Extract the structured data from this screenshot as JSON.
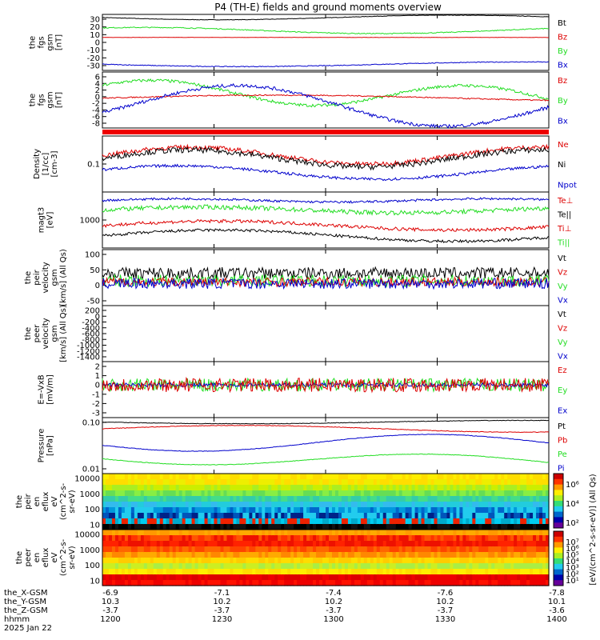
{
  "title": "P4 (TH-E) fields and ground moments overview",
  "colors": {
    "black": "#000000",
    "red": "#dd0000",
    "green": "#22dd22",
    "blue": "#0000cc"
  },
  "panels": [
    {
      "id": "fgs",
      "ylabel": [
        "the",
        "fgs",
        "gsm",
        "[nT]"
      ],
      "yticks": [
        "30",
        "20",
        "10",
        "0",
        "-10",
        "-20",
        "-30"
      ],
      "legend": [
        {
          "t": "Bt",
          "c": "black"
        },
        {
          "t": "Bz",
          "c": "red"
        },
        {
          "t": "By",
          "c": "green"
        },
        {
          "t": "Bx",
          "c": "blue"
        }
      ]
    },
    {
      "id": "fgs_dsl",
      "ylabel": [
        "the",
        "fgs",
        "gsm",
        "[nT]"
      ],
      "yticks": [
        "6",
        "4",
        "2",
        "0",
        "-2",
        "-4",
        "-6",
        "-8"
      ],
      "legend": [
        {
          "t": "Bz",
          "c": "red"
        },
        {
          "t": "By",
          "c": "green"
        },
        {
          "t": "Bx",
          "c": "blue"
        }
      ]
    },
    {
      "id": "density",
      "ylabel": [
        "Density",
        "[1/cc]",
        "[cm-3]"
      ],
      "yticks": [
        "0.1"
      ],
      "legend": [
        {
          "t": "Ne",
          "c": "red"
        },
        {
          "t": "Ni",
          "c": "black"
        },
        {
          "t": "Npot",
          "c": "blue"
        }
      ]
    },
    {
      "id": "temp",
      "ylabel": [
        "magt3",
        "[eV]"
      ],
      "yticks": [
        "1000"
      ],
      "legend": [
        {
          "t": "Te⊥",
          "c": "red"
        },
        {
          "t": "Te||",
          "c": "black"
        },
        {
          "t": "Ti⊥",
          "c": "red"
        },
        {
          "t": "Ti||",
          "c": "green"
        }
      ]
    },
    {
      "id": "vel1",
      "ylabel": [
        "the",
        "peir",
        "velocity",
        "gsm",
        "[km/s] (All Qs)"
      ],
      "yticks": [
        "100",
        "50",
        "0",
        "-50"
      ],
      "legend": [
        {
          "t": "Vt",
          "c": "black"
        },
        {
          "t": "Vz",
          "c": "red"
        },
        {
          "t": "Vy",
          "c": "green"
        },
        {
          "t": "Vx",
          "c": "blue"
        }
      ]
    },
    {
      "id": "vel2",
      "ylabel": [
        "the",
        "peer",
        "velocity",
        "gsm",
        "[km/s] (All Qs)"
      ],
      "yticks": [
        "200",
        "0",
        "-200",
        "-400",
        "-600",
        "-800",
        "-1000",
        "-1200",
        "-1400"
      ],
      "legend": [
        {
          "t": "Vt",
          "c": "black"
        },
        {
          "t": "Vz",
          "c": "red"
        },
        {
          "t": "Vy",
          "c": "green"
        },
        {
          "t": "Vx",
          "c": "blue"
        }
      ]
    },
    {
      "id": "efield",
      "ylabel": [
        "E=-VxB",
        "[mV/m]"
      ],
      "yticks": [
        "2",
        "1",
        "0",
        "-1",
        "-2",
        "-3"
      ],
      "legend": [
        {
          "t": "Ez",
          "c": "red"
        },
        {
          "t": "Ey",
          "c": "green"
        },
        {
          "t": "Ex",
          "c": "blue"
        }
      ]
    },
    {
      "id": "pressure",
      "ylabel": [
        "Pressure",
        "[nPa]"
      ],
      "yticks": [
        "0.10",
        "0.01"
      ],
      "legend": [
        {
          "t": "Pt",
          "c": "black"
        },
        {
          "t": "Pb",
          "c": "red"
        },
        {
          "t": "Pe",
          "c": "green"
        },
        {
          "t": "Pi",
          "c": "blue"
        }
      ]
    },
    {
      "id": "ion_spec",
      "ylabel": [
        "the",
        "peir",
        "en",
        "eflux",
        "eV",
        "(cm^2-s-",
        "sr-eV)"
      ],
      "yticks": [
        "10000",
        "1000",
        "100",
        "10"
      ]
    },
    {
      "id": "ele_spec",
      "ylabel": [
        "the",
        "peer",
        "en",
        "eflux",
        "eV",
        "(cm^2-s-",
        "sr-eV)"
      ],
      "yticks": [
        "10000",
        "1000",
        "100",
        "10"
      ]
    }
  ],
  "colorbars": {
    "ion_labels": [
      "10⁶",
      "10⁴",
      "10²"
    ],
    "ele_labels": [
      "10⁷",
      "10⁶",
      "10⁵",
      "10⁴",
      "10³",
      "10²",
      "10¹"
    ],
    "unit": "[eV/(cm^2-s-sr-eV)] (All Qs)"
  },
  "footer": {
    "row_labels": [
      "the_X-GSM",
      "the_Y-GSM",
      "the_Z-GSM",
      "hhmm",
      "2025 Jan 22"
    ],
    "columns": [
      {
        "x": "-6.9",
        "y": "10.3",
        "z": "-3.7",
        "t": "1200"
      },
      {
        "x": "-7.1",
        "y": "10.2",
        "z": "-3.7",
        "t": "1230"
      },
      {
        "x": "-7.4",
        "y": "10.2",
        "z": "-3.7",
        "t": "1300"
      },
      {
        "x": "-7.6",
        "y": "10.2",
        "z": "-3.7",
        "t": "1330"
      },
      {
        "x": "-7.8",
        "y": "10.1",
        "z": "-3.6",
        "t": "1400"
      }
    ]
  },
  "chart_data": {
    "type": "line",
    "title": "P4 (TH-E) fields and ground moments overview",
    "x": [
      "1200",
      "1230",
      "1300",
      "1330",
      "1400"
    ],
    "xlabel": "hhmm",
    "series": [
      {
        "name": "Bt",
        "values": [
          34,
          31,
          33,
          31,
          34
        ]
      },
      {
        "name": "Bz",
        "values": [
          8,
          8,
          8,
          8,
          8
        ]
      },
      {
        "name": "By",
        "values": [
          20,
          14,
          20,
          13,
          14
        ]
      },
      {
        "name": "Bx",
        "values": [
          -24,
          -29,
          -24,
          -30,
          -31
        ]
      }
    ],
    "ylim": [
      -35,
      38
    ]
  }
}
